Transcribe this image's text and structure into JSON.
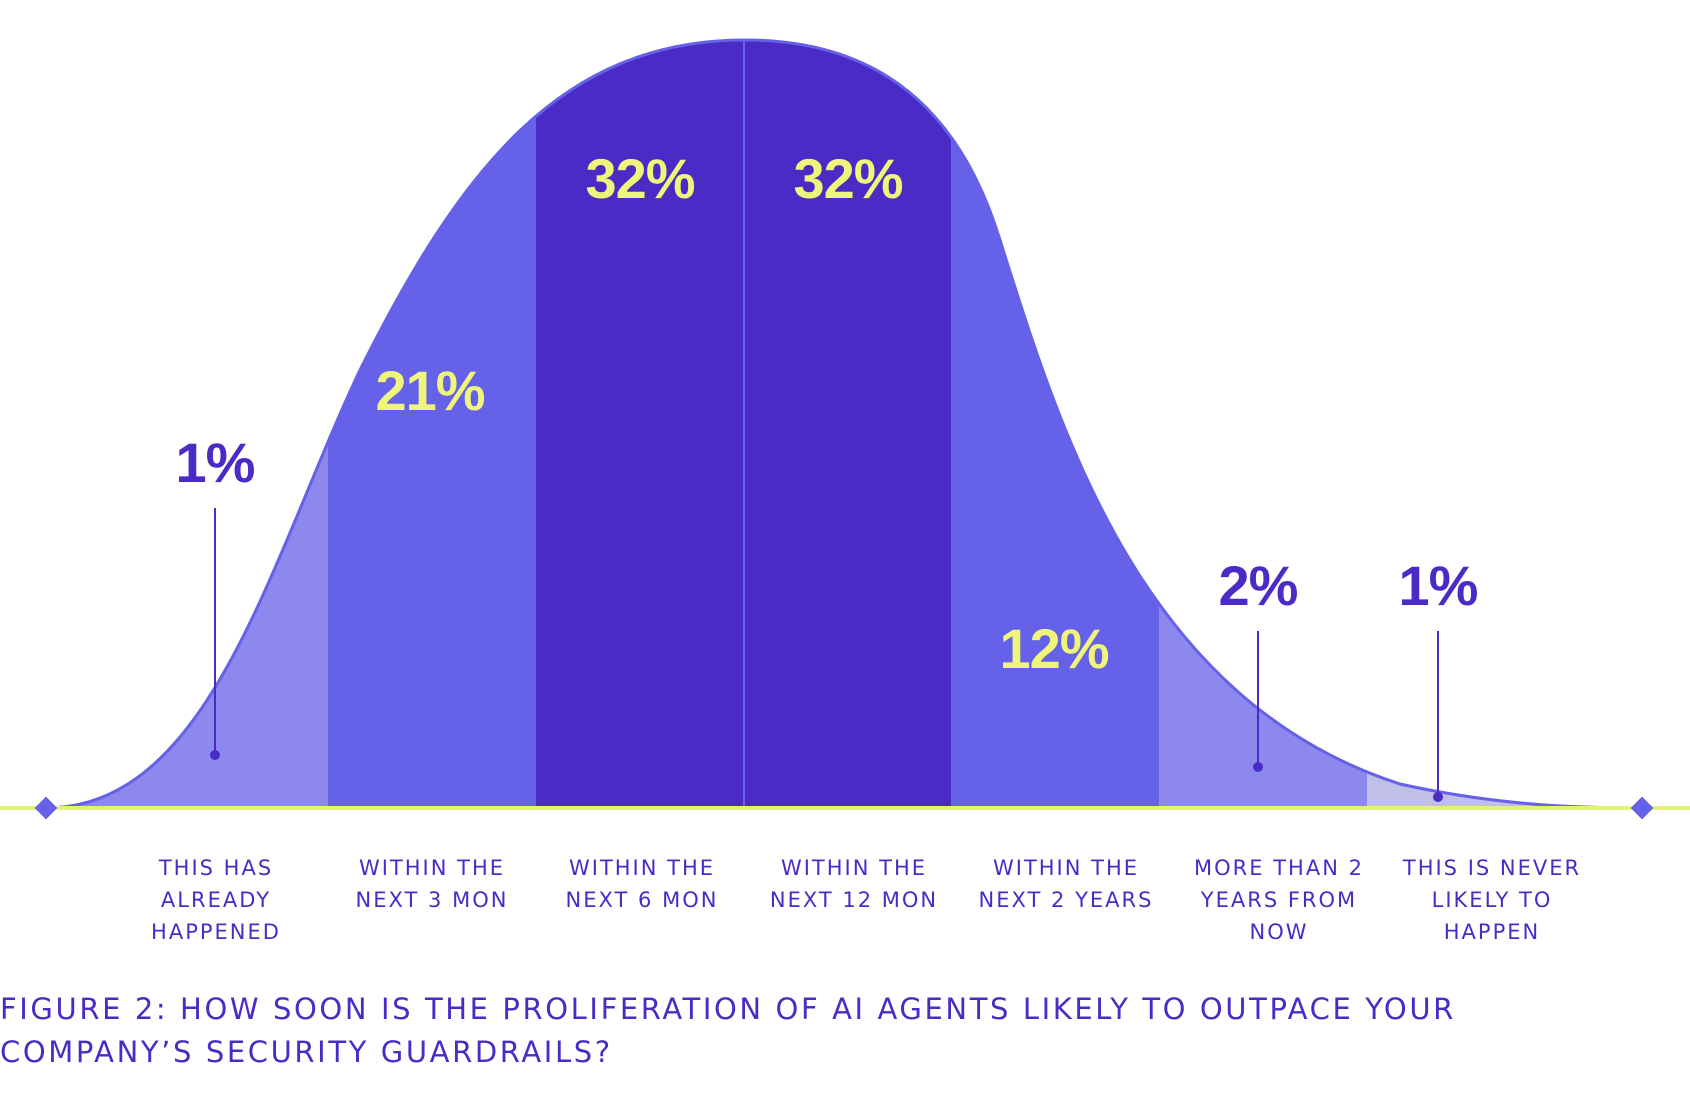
{
  "chart_data": {
    "type": "area",
    "title_lines": [
      "FIGURE 2: HOW SOON IS THE PROLIFERATION OF AI AGENTS LIKELY TO OUTPACE YOUR",
      "COMPANY’S SECURITY GUARDRAILS?"
    ],
    "categories": [
      [
        "THIS HAS",
        "ALREADY",
        "HAPPENED"
      ],
      [
        "WITHIN THE",
        "NEXT 3 MON"
      ],
      [
        "WITHIN THE",
        "NEXT 6 MON"
      ],
      [
        "WITHIN THE",
        "NEXT 12 MON"
      ],
      [
        "WITHIN THE",
        "NEXT 2 YEARS"
      ],
      [
        "MORE THAN 2",
        "YEARS FROM",
        "NOW"
      ],
      [
        "THIS IS NEVER",
        "LIKELY TO",
        "HAPPEN"
      ]
    ],
    "values": [
      1,
      21,
      32,
      32,
      12,
      2,
      1
    ],
    "value_labels": [
      "1%",
      "21%",
      "32%",
      "32%",
      "12%",
      "2%",
      "1%"
    ],
    "unit": "%",
    "segment_colors": [
      "#8c88ee",
      "#6561e8",
      "#4b2bc6",
      "#4b2bc6",
      "#6561e8",
      "#8c88ee",
      "#c0bfe6"
    ],
    "label_colors": [
      "#4b2bc6",
      "#eef57a",
      "#eef57a",
      "#eef57a",
      "#eef57a",
      "#4b2bc6",
      "#4b2bc6"
    ],
    "baseline_color": "#e3f07a",
    "curve_color": "#6561e8",
    "grid": false,
    "legend": "none"
  }
}
